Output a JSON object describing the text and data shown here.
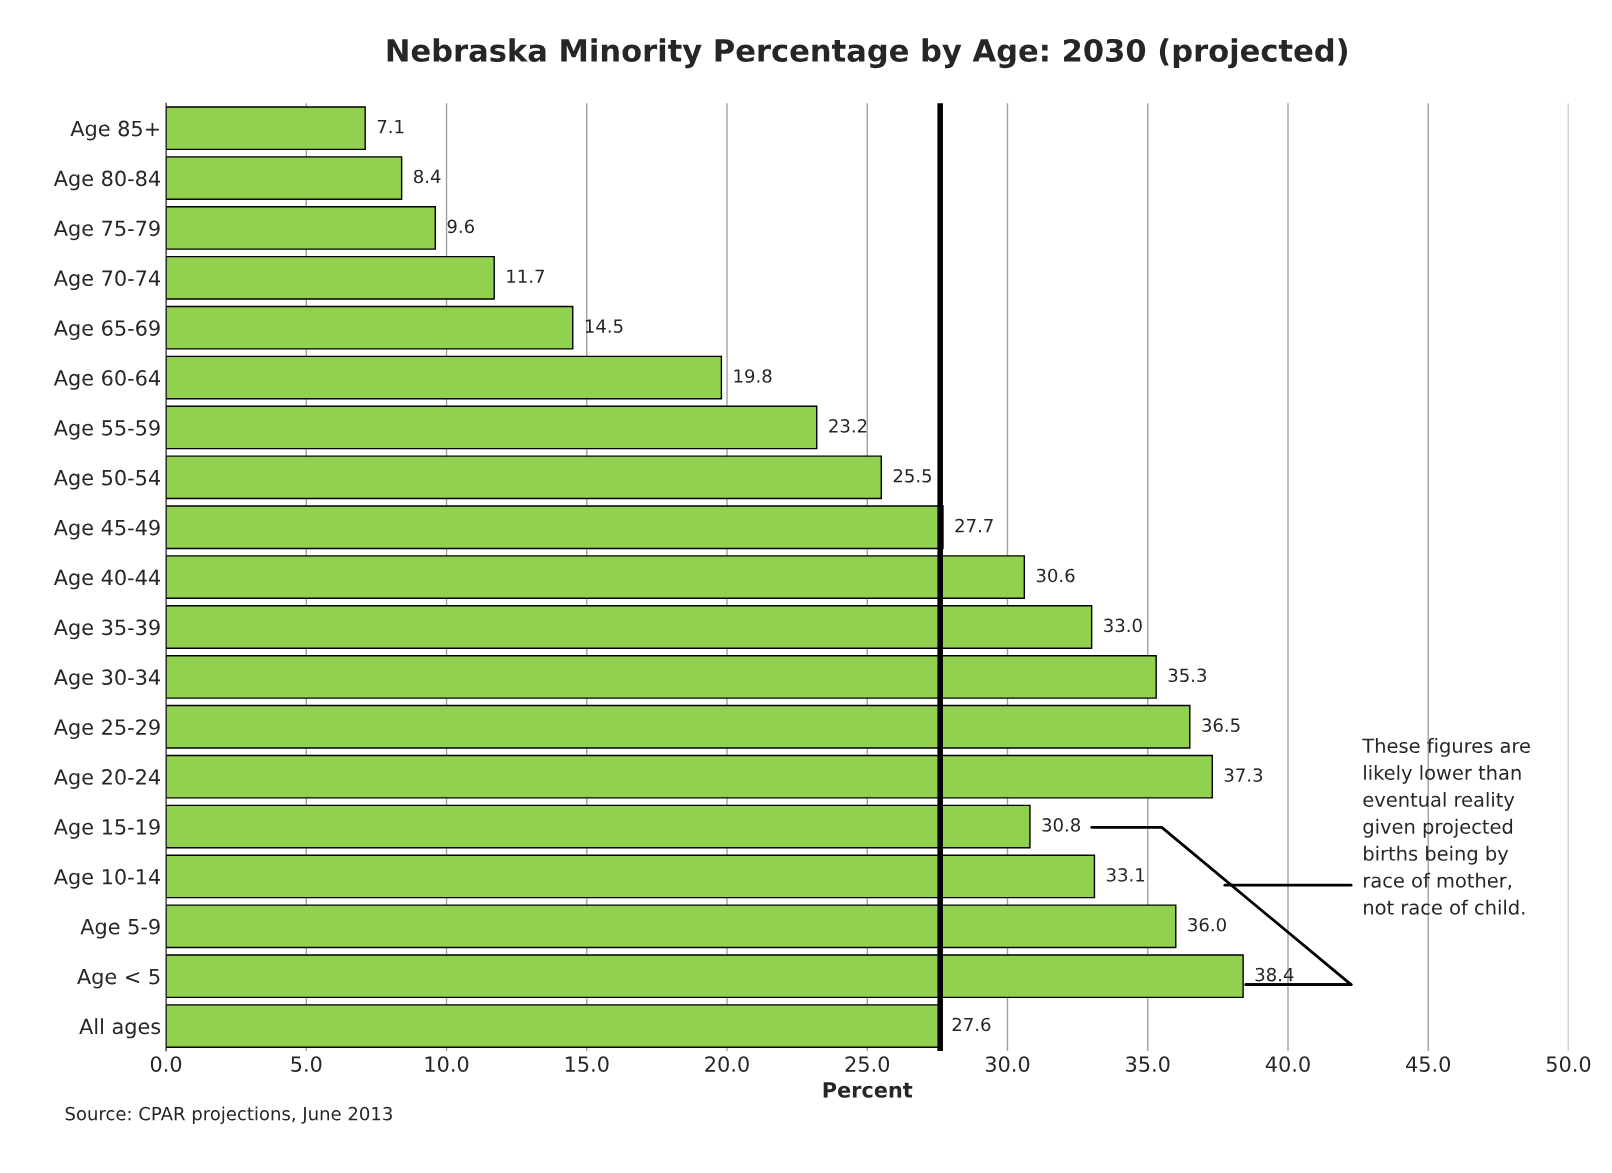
{
  "chart_data": {
    "type": "bar",
    "orientation": "horizontal",
    "title": "Nebraska Minority Percentage by Age: 2030 (projected)",
    "xlabel": "Percent",
    "categories": [
      "Age 85+",
      "Age 80-84",
      "Age 75-79",
      "Age 70-74",
      "Age 65-69",
      "Age 60-64",
      "Age 55-59",
      "Age 50-54",
      "Age 45-49",
      "Age 40-44",
      "Age 35-39",
      "Age 30-34",
      "Age 25-29",
      "Age 20-24",
      "Age 15-19",
      "Age 10-14",
      "Age 5-9",
      "Age < 5",
      "All ages"
    ],
    "values": [
      7.1,
      8.4,
      9.6,
      11.7,
      14.5,
      19.8,
      23.2,
      25.5,
      27.7,
      30.6,
      33.0,
      35.3,
      36.5,
      37.3,
      30.8,
      33.1,
      36.0,
      38.4,
      27.6
    ],
    "value_labels": [
      "7.1",
      "8.4",
      "9.6",
      "11.7",
      "14.5",
      "19.8",
      "23.2",
      "25.5",
      "27.7",
      "30.6",
      "33.0",
      "35.3",
      "36.5",
      "37.3",
      "30.8",
      "33.1",
      "36.0",
      "38.4",
      "27.6"
    ],
    "color": "#92d050",
    "xlim": [
      0,
      50
    ],
    "xticks": [
      {
        "value": 0,
        "label": "0.0"
      },
      {
        "value": 5,
        "label": "5.0"
      },
      {
        "value": 10,
        "label": "10.0"
      },
      {
        "value": 15,
        "label": "15.0"
      },
      {
        "value": 20,
        "label": "20.0"
      },
      {
        "value": 25,
        "label": "25.0"
      },
      {
        "value": 30,
        "label": "30.0"
      },
      {
        "value": 35,
        "label": "35.0"
      },
      {
        "value": 40,
        "label": "40.0"
      },
      {
        "value": 45,
        "label": "45.0"
      },
      {
        "value": 50,
        "label": "50.0"
      }
    ],
    "grid": "x",
    "legend": false,
    "ref_lines": [
      {
        "axis": "x",
        "value": 27.6,
        "color": "#000000"
      }
    ],
    "annotations": [
      "These figures are\nlikely lower than\neventual reality\ngiven projected\nbirths being by\nrace of mother,\nnot race of child.",
      "Source: CPAR projections, June 2013"
    ]
  }
}
